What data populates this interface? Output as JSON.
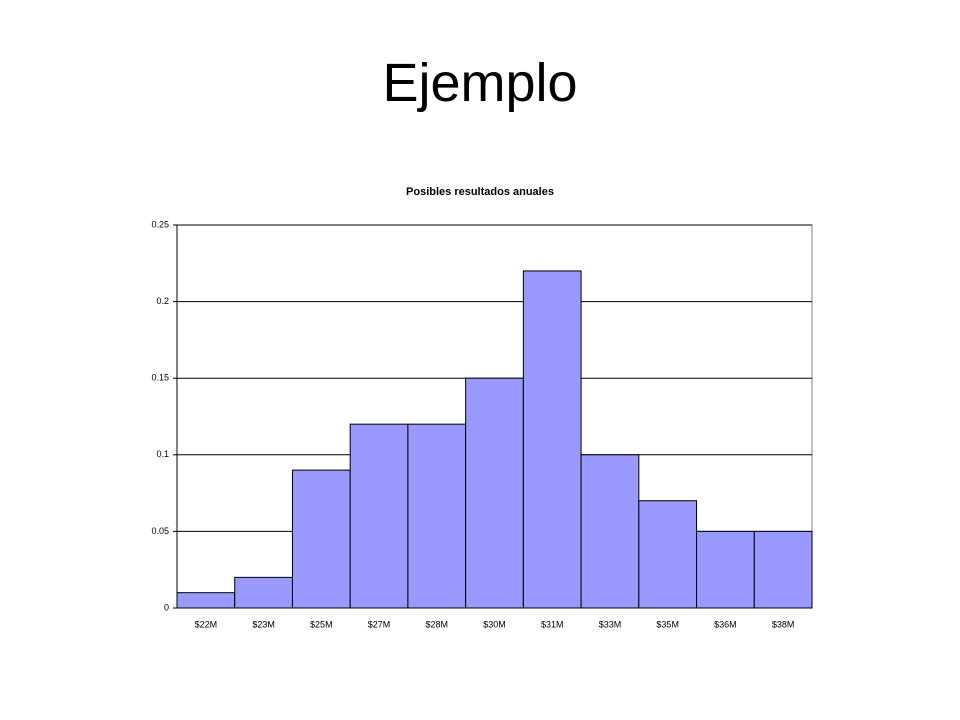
{
  "slide_title": "Ejemplo",
  "chart_data": {
    "type": "bar",
    "title": "Posibles resultados anuales",
    "categories": [
      "$22M",
      "$23M",
      "$25M",
      "$27M",
      "$28M",
      "$30M",
      "$31M",
      "$33M",
      "$35M",
      "$36M",
      "$38M"
    ],
    "values": [
      0.01,
      0.02,
      0.09,
      0.12,
      0.12,
      0.15,
      0.22,
      0.1,
      0.07,
      0.05,
      0.05
    ],
    "color": "#9999ff",
    "ylim": [
      0,
      0.25
    ],
    "yticks": [
      0,
      0.05,
      0.1,
      0.15,
      0.2,
      0.25
    ],
    "grid": true
  }
}
